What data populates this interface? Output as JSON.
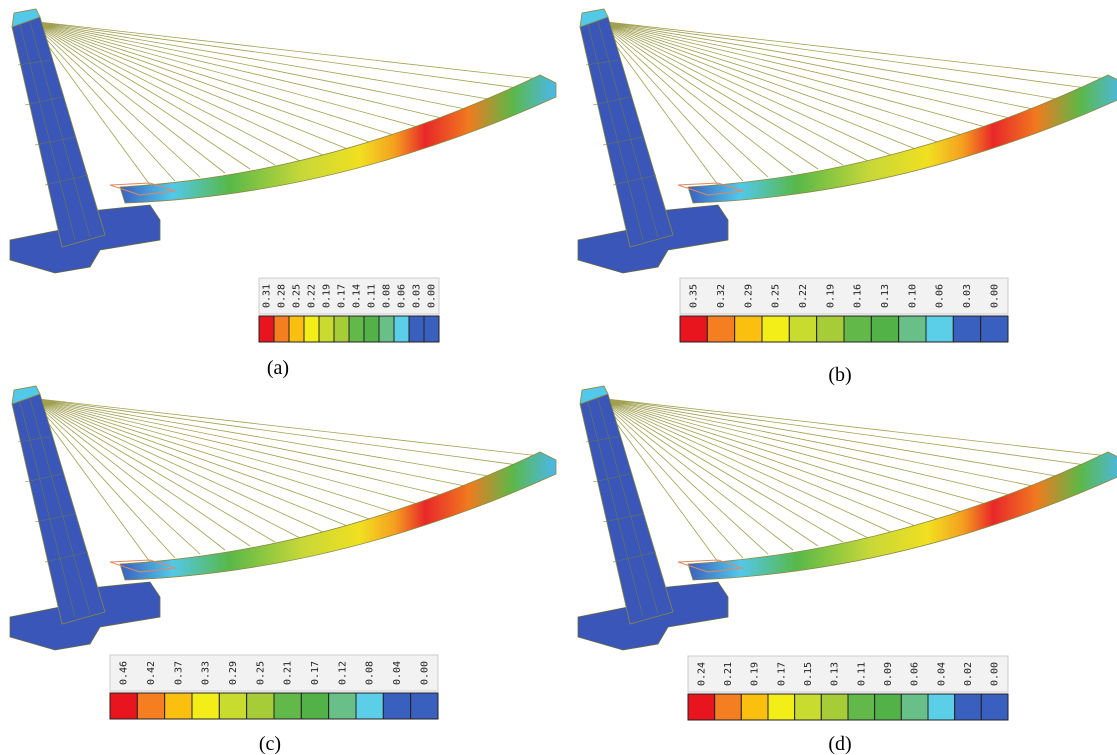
{
  "panels": [
    {
      "label": "(a)",
      "legend": [
        "0.31",
        "0.28",
        "0.25",
        "0.22",
        "0.19",
        "0.17",
        "0.14",
        "0.11",
        "0.08",
        "0.06",
        "0.03",
        "0.00"
      ]
    },
    {
      "label": "(b)",
      "legend": [
        "0.35",
        "0.32",
        "0.29",
        "0.25",
        "0.22",
        "0.19",
        "0.16",
        "0.13",
        "0.10",
        "0.06",
        "0.03",
        "0.00"
      ]
    },
    {
      "label": "(c)",
      "legend": [
        "0.46",
        "0.42",
        "0.37",
        "0.33",
        "0.29",
        "0.25",
        "0.21",
        "0.17",
        "0.12",
        "0.08",
        "0.04",
        "0.00"
      ]
    },
    {
      "label": "(d)",
      "legend": [
        "0.24",
        "0.21",
        "0.19",
        "0.17",
        "0.15",
        "0.13",
        "0.11",
        "0.09",
        "0.06",
        "0.04",
        "0.02",
        "0.00"
      ]
    }
  ]
}
